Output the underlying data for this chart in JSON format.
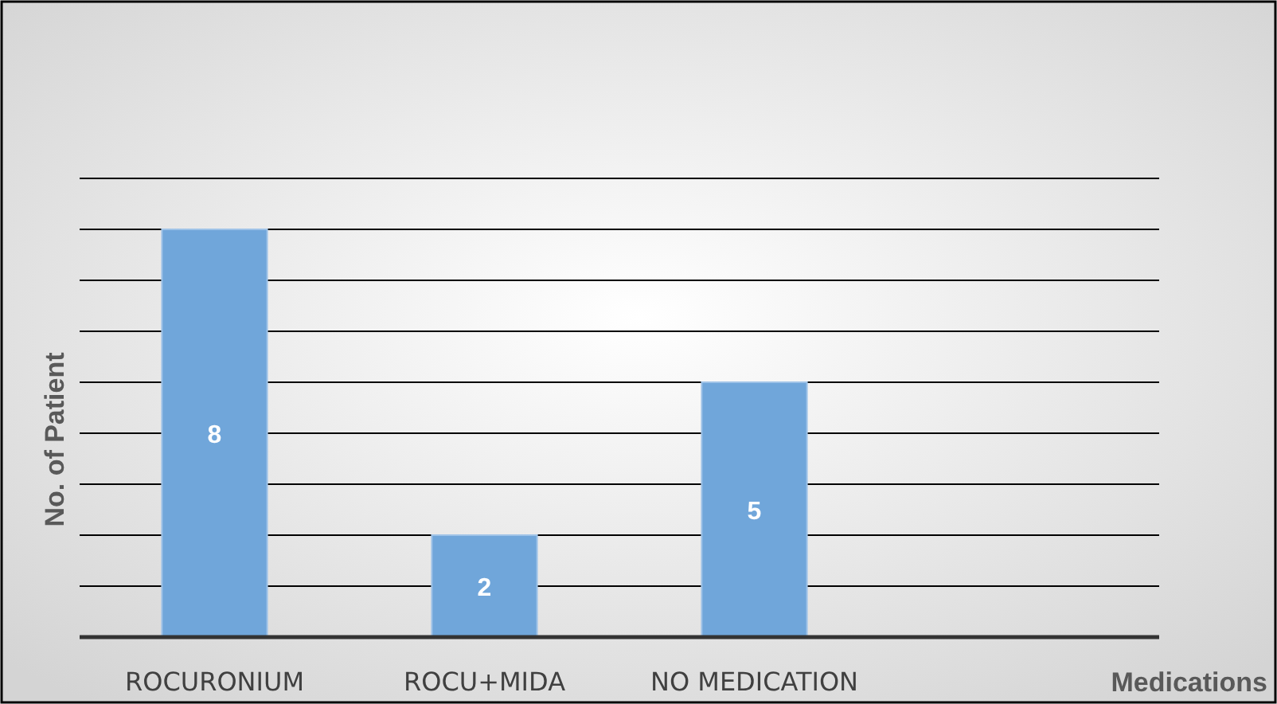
{
  "chart_data": {
    "type": "bar",
    "xlabel": "Medications",
    "ylabel": "No. of Patient",
    "categories": [
      "ROCURONIUM",
      "ROCU+MIDA",
      "NO MEDICATION",
      null
    ],
    "values": [
      8,
      2,
      5,
      null
    ],
    "color": "#70a6da",
    "data_labels": true,
    "ylim": [
      0,
      9
    ],
    "yticks": [
      {
        "value": 0,
        "label": null
      },
      {
        "value": 1,
        "label": null
      },
      {
        "value": 2,
        "label": null
      },
      {
        "value": 3,
        "label": null
      },
      {
        "value": 4,
        "label": null
      },
      {
        "value": 5,
        "label": null
      },
      {
        "value": 6,
        "label": null
      },
      {
        "value": 7,
        "label": null
      },
      {
        "value": 8,
        "label": null
      },
      {
        "value": 9,
        "label": null
      }
    ],
    "tick_labels": "x",
    "grid": "y"
  }
}
